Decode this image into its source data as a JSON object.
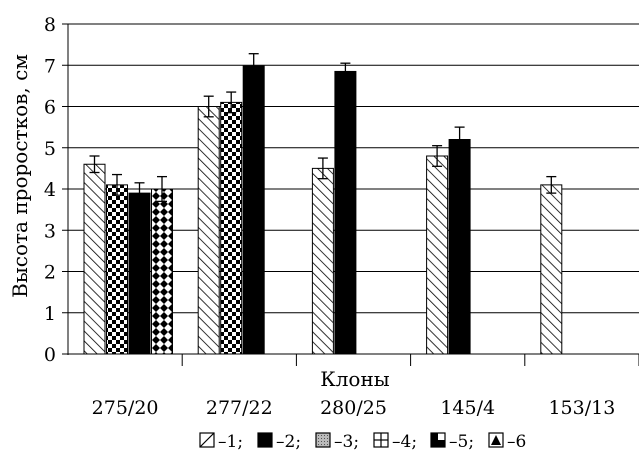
{
  "chart_data": {
    "type": "bar",
    "xlabel": "Клоны",
    "ylabel": "Высота проростков, см",
    "ylim": [
      0,
      8
    ],
    "yticks": [
      "0",
      "1",
      "2",
      "3",
      "4",
      "5",
      "6",
      "7",
      "8"
    ],
    "grid": true,
    "legend_position": "bottom",
    "categories": [
      "275/20",
      "277/22",
      "280/25",
      "145/4",
      "153/13"
    ],
    "series": [
      {
        "name": "1",
        "legend_label": "–1;",
        "pattern": "diagonal-hatch",
        "values": [
          4.6,
          6.0,
          4.5,
          4.8,
          4.1
        ],
        "errors": [
          0.2,
          0.25,
          0.25,
          0.25,
          0.2
        ]
      },
      {
        "name": "2",
        "legend_label": "–2;",
        "pattern": "solid-black",
        "values": [
          3.9,
          6.98,
          6.85,
          5.2,
          null
        ],
        "errors": [
          0.25,
          0.3,
          0.2,
          0.3,
          null
        ]
      },
      {
        "name": "3",
        "legend_label": "–3;",
        "pattern": "dotted-gray",
        "values": [
          null,
          null,
          null,
          null,
          null
        ],
        "errors": [
          null,
          null,
          null,
          null,
          null
        ]
      },
      {
        "name": "4",
        "legend_label": "–4;",
        "pattern": "checker",
        "values": [
          4.1,
          6.1,
          null,
          null,
          null
        ],
        "errors": [
          0.25,
          0.25,
          null,
          null,
          null
        ]
      },
      {
        "name": "5",
        "legend_label": "–5;",
        "pattern": "half-filled",
        "values": [
          null,
          null,
          null,
          null,
          null
        ],
        "errors": [
          null,
          null,
          null,
          null,
          null
        ]
      },
      {
        "name": "6",
        "legend_label": "–6",
        "pattern": "diamond",
        "values": [
          4.0,
          null,
          null,
          null,
          null
        ],
        "errors": [
          0.3,
          null,
          null,
          null,
          null
        ]
      }
    ],
    "bar_order": [
      [
        0,
        3,
        1,
        5
      ],
      [
        0,
        3,
        1
      ],
      [
        0,
        1
      ],
      [
        0,
        1
      ],
      [
        0
      ]
    ]
  },
  "colors": {
    "ink": "#000000",
    "background": "#ffffff"
  }
}
